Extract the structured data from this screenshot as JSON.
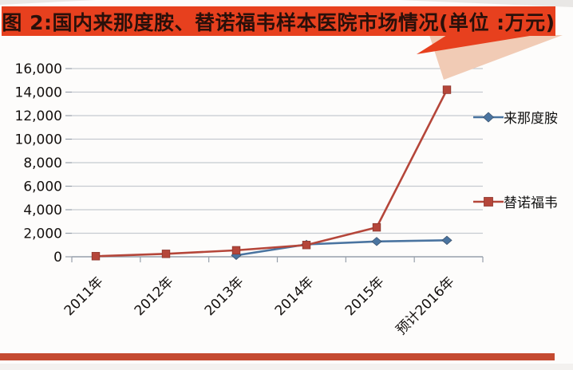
{
  "page": {
    "banner": {
      "bg_color": "#e7401e",
      "text_color": "#2a100a",
      "tail_light_color": "#f1cbb5"
    },
    "footer_stripe_color": "#c54a31"
  },
  "chart_data": {
    "type": "line",
    "title": "图 2:国内来那度胺、替诺福韦样本医院市场情况(单位 :万元)",
    "unit": "万元",
    "categories": [
      "2011年",
      "2012年",
      "2013年",
      "2014年",
      "2015年",
      "预计2016年"
    ],
    "series": [
      {
        "name": "来那度胺",
        "color": "#4a74a0",
        "marker": "diamond",
        "values": [
          null,
          null,
          120,
          1050,
          1300,
          1400
        ]
      },
      {
        "name": "替诺福韦",
        "color": "#b5463a",
        "marker": "square",
        "values": [
          50,
          250,
          550,
          1000,
          2500,
          14200
        ]
      }
    ],
    "ylim": [
      0,
      16000
    ],
    "ytick_step": 2000,
    "ytick_labels": [
      "0",
      "2,000",
      "4,000",
      "6,000",
      "8,000",
      "10,000",
      "12,000",
      "14,000",
      "16,000"
    ],
    "x_tick_rotation": 45,
    "grid": true,
    "legend_position": "right",
    "grid_color": "#c6cad0",
    "axis_color": "#97a0ab",
    "tick_label_color": "#14100e"
  }
}
